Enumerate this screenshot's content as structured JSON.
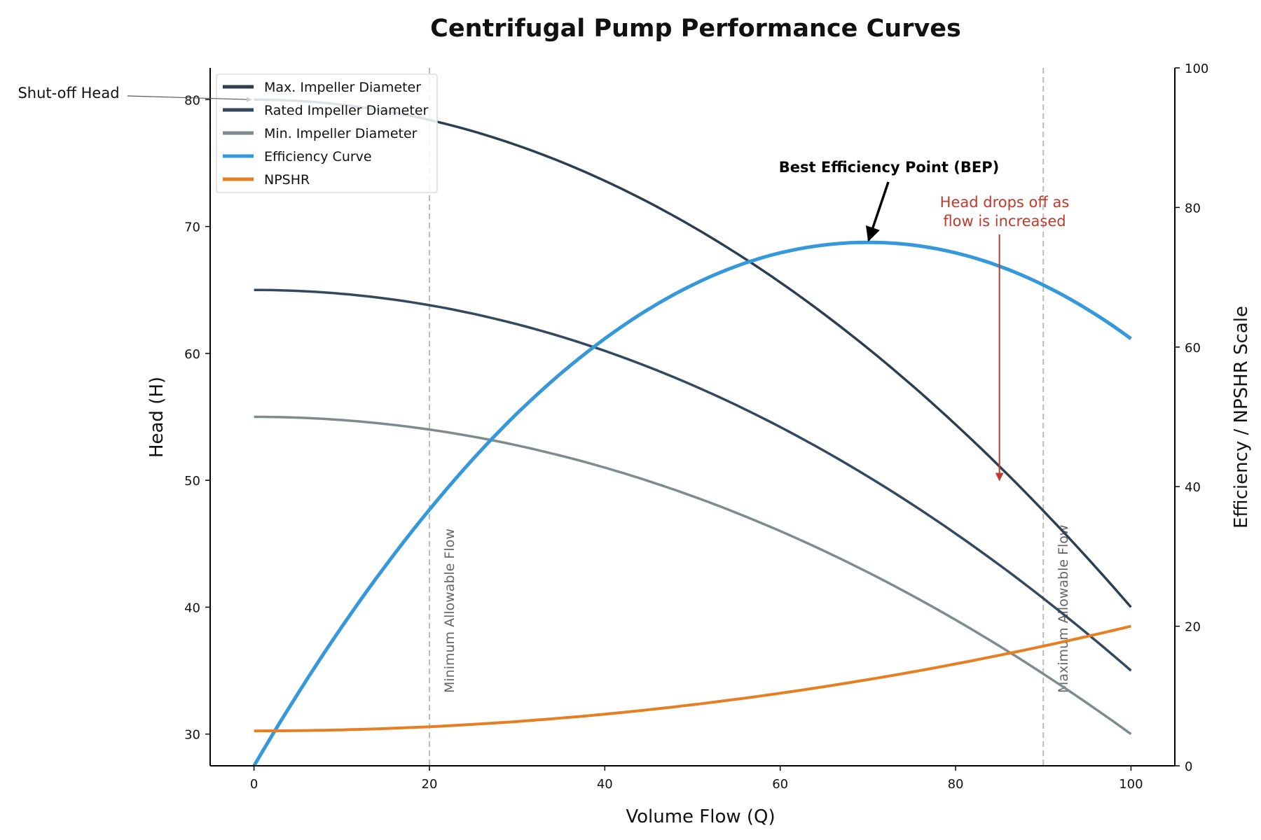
{
  "chart_data": {
    "type": "line",
    "title": "Centrifugal Pump Performance Curves",
    "xlabel": "Volume Flow (Q)",
    "ylabel": "Head (H)",
    "ylabel_right": "Efficiency / NPSHR Scale",
    "xlim": [
      -5,
      105
    ],
    "ylim": [
      27.5,
      82.5
    ],
    "ylim_right": [
      0,
      100
    ],
    "xticks": [
      0,
      20,
      40,
      60,
      80,
      100
    ],
    "yticks": [
      30,
      40,
      50,
      60,
      70,
      80
    ],
    "yticks_right": [
      0,
      20,
      40,
      60,
      80,
      100
    ],
    "grid": false,
    "legend_placement": "top-left",
    "x": [
      0,
      10,
      20,
      30,
      40,
      50,
      60,
      70,
      80,
      90,
      100
    ],
    "series": [
      {
        "name": "Max. Impeller Diameter",
        "axis": "left",
        "color": "#2c3e50",
        "values": [
          80,
          79.6,
          78.4,
          76.4,
          73.6,
          70,
          65.6,
          60.4,
          54.4,
          47.6,
          40
        ]
      },
      {
        "name": "Rated Impeller Diameter",
        "axis": "left",
        "color": "#34495e",
        "values": [
          65,
          64.7,
          63.8,
          62.3,
          60.2,
          57.5,
          54.2,
          50.3,
          45.8,
          40.7,
          35
        ]
      },
      {
        "name": "Min. Impeller Diameter",
        "axis": "left",
        "color": "#7f8c8d",
        "values": [
          55,
          54.75,
          54,
          52.75,
          51,
          48.75,
          46,
          42.75,
          39,
          34.75,
          30
        ]
      },
      {
        "name": "Efficiency Curve",
        "axis": "right",
        "color": "#3498db",
        "values": [
          0,
          19.9,
          36.7,
          50.5,
          61.2,
          68.9,
          73.5,
          75,
          73.5,
          68.9,
          61.2
        ]
      },
      {
        "name": "NPSHR",
        "axis": "right",
        "color": "#e67e22",
        "values": [
          5,
          5.15,
          5.6,
          6.35,
          7.4,
          8.75,
          10.4,
          12.35,
          14.6,
          17.15,
          20
        ]
      }
    ],
    "vertical_lines": [
      {
        "x": 20,
        "label": "Minimum Allowable Flow"
      },
      {
        "x": 90,
        "label": "Maximum Allowable Flow"
      }
    ],
    "annotations": [
      {
        "text": "Shut-off Head",
        "target": {
          "x": 0,
          "y": 80,
          "axis": "left"
        }
      },
      {
        "text": "Best Efficiency Point (BEP)",
        "target": {
          "x": 70,
          "y": 75,
          "axis": "right"
        }
      },
      {
        "text_lines": [
          "Head drops off as",
          "flow is increased"
        ],
        "color": "#c0392b",
        "arrow_x": 85,
        "arrow_to_head": 50
      }
    ]
  }
}
